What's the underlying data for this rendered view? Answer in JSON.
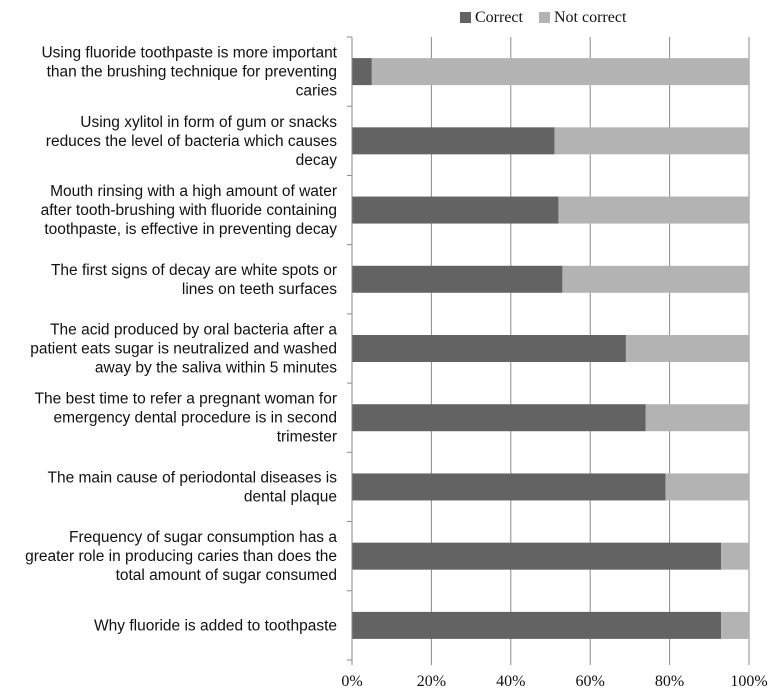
{
  "chart_data": {
    "type": "bar",
    "orientation": "horizontal",
    "stacked": true,
    "categories": [
      [
        "Using fluoride toothpaste is more important",
        "than the brushing technique for preventing",
        "caries"
      ],
      [
        "Using xylitol in form of gum or snacks",
        "reduces the level of bacteria which causes",
        "decay"
      ],
      [
        "Mouth rinsing with a high amount of water",
        "after tooth-brushing with fluoride containing",
        "toothpaste, is effective in preventing decay"
      ],
      [
        "The first signs of decay are white spots or",
        "lines on teeth surfaces"
      ],
      [
        "The acid produced by oral bacteria after a",
        "patient eats sugar is neutralized and washed",
        "away by the saliva within 5 minutes"
      ],
      [
        "The best time to refer a pregnant woman for",
        "emergency dental procedure is in second",
        "trimester"
      ],
      [
        "The main cause of periodontal diseases is",
        "dental plaque"
      ],
      [
        "Frequency of sugar consumption has a",
        "greater role in producing caries than does the",
        "total amount of sugar consumed"
      ],
      [
        "Why fluoride is added to toothpaste"
      ]
    ],
    "series": [
      {
        "name": "Correct",
        "color": "#636363",
        "values": [
          5,
          51,
          52,
          53,
          69,
          74,
          79,
          93,
          93
        ]
      },
      {
        "name": "Not correct",
        "color": "#b3b3b3",
        "values": [
          95,
          49,
          48,
          47,
          31,
          26,
          21,
          7,
          7
        ]
      }
    ],
    "xlim": [
      0,
      100
    ],
    "xticks": [
      "0%",
      "20%",
      "40%",
      "60%",
      "80%",
      "100%"
    ],
    "grid": true,
    "legend": "top"
  }
}
